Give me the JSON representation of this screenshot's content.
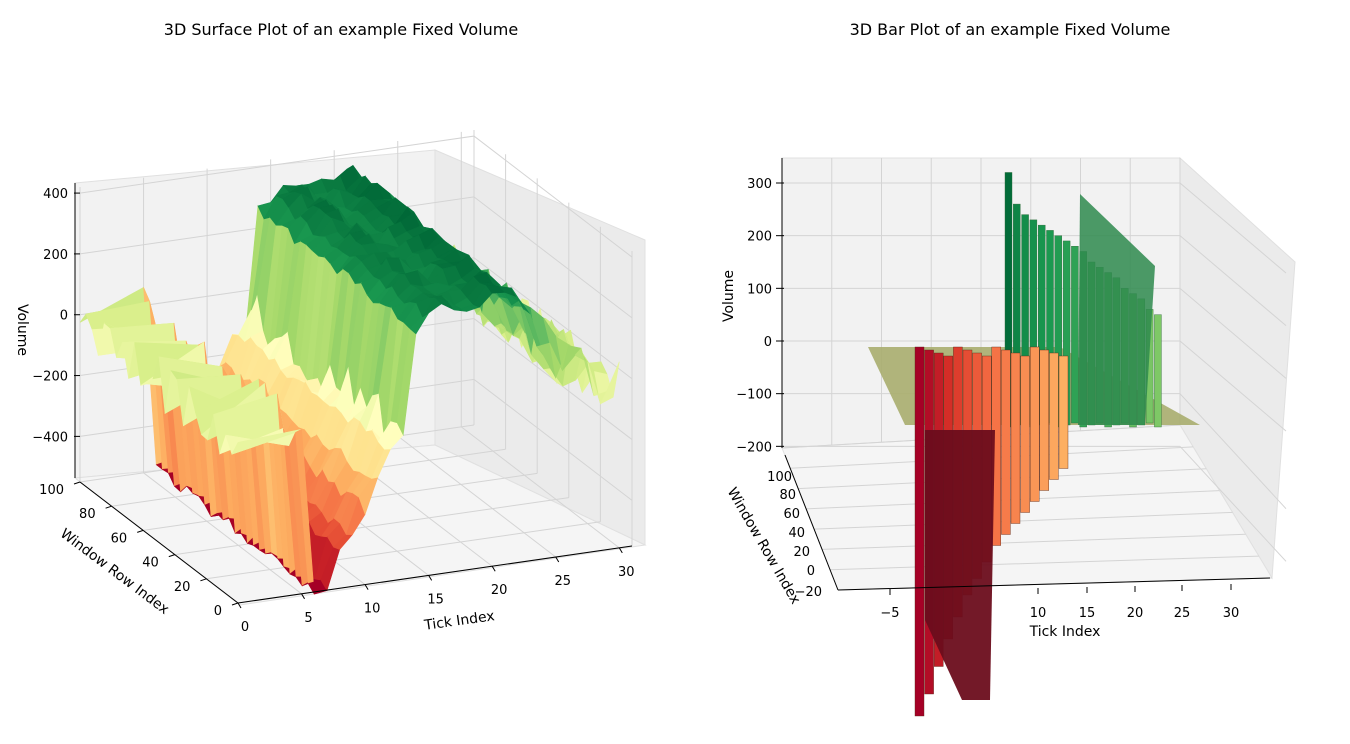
{
  "figure": {
    "left_title": "3D Surface Plot of an example Fixed Volume",
    "right_title": "3D Bar Plot of an example Fixed Volume"
  },
  "chart_data": [
    {
      "type": "surface",
      "title": "3D Surface Plot of an example Fixed Volume",
      "xlabel": "Tick Index",
      "ylabel": "Window Row Index",
      "zlabel": "Volume",
      "xlim": [
        0,
        31
      ],
      "ylim": [
        0,
        100
      ],
      "zlim": [
        -550,
        420
      ],
      "x_ticks": [
        "0",
        "5",
        "10",
        "15",
        "20",
        "25",
        "30"
      ],
      "y_ticks": [
        "0",
        "20",
        "40",
        "60",
        "80",
        "100"
      ],
      "z_ticks": [
        "−400",
        "−200",
        "0",
        "200",
        "400"
      ],
      "colormap": "RdYlGn",
      "grid": true,
      "profile_tick_index": [
        0,
        5,
        6,
        7,
        8,
        9,
        10,
        11,
        12,
        13,
        14,
        15,
        16,
        17,
        18,
        19,
        20,
        21,
        22,
        23,
        24,
        25,
        26,
        27,
        28,
        29,
        30
      ],
      "profile_volume": [
        -20,
        -20,
        -540,
        -540,
        -420,
        -380,
        -300,
        -220,
        -120,
        -60,
        260,
        300,
        330,
        330,
        300,
        320,
        340,
        360,
        320,
        260,
        180,
        120,
        60,
        40,
        30,
        -20,
        -20
      ],
      "series": [
        {
          "name": "",
          "values": []
        }
      ]
    },
    {
      "type": "bar3d",
      "title": "3D Bar Plot of an example Fixed Volume",
      "xlabel": "Tick Index",
      "ylabel": "Window Row Index",
      "zlabel": "Volume",
      "xlim": [
        -10,
        33
      ],
      "ylim": [
        -30,
        105
      ],
      "zlim": [
        -200,
        330
      ],
      "x_ticks": [
        "−5",
        "10",
        "15",
        "20",
        "25",
        "30"
      ],
      "y_ticks": [
        "−20",
        "0",
        "20",
        "40",
        "60",
        "80",
        "100"
      ],
      "z_ticks": [
        "−200",
        "−100",
        "0",
        "100",
        "200",
        "300"
      ],
      "colormap": "RdYlGn",
      "grid": true,
      "positive_bars_volume": [
        320,
        260,
        240,
        230,
        220,
        210,
        200,
        190,
        180,
        170,
        150,
        140,
        130,
        120,
        100,
        90,
        80,
        60,
        50
      ],
      "negative_bars_volume": [
        -520,
        -480,
        -430,
        -380,
        -340,
        -300,
        -270,
        -240,
        -210,
        -190,
        -170,
        -150,
        -130,
        -110,
        -90,
        -70
      ]
    }
  ]
}
